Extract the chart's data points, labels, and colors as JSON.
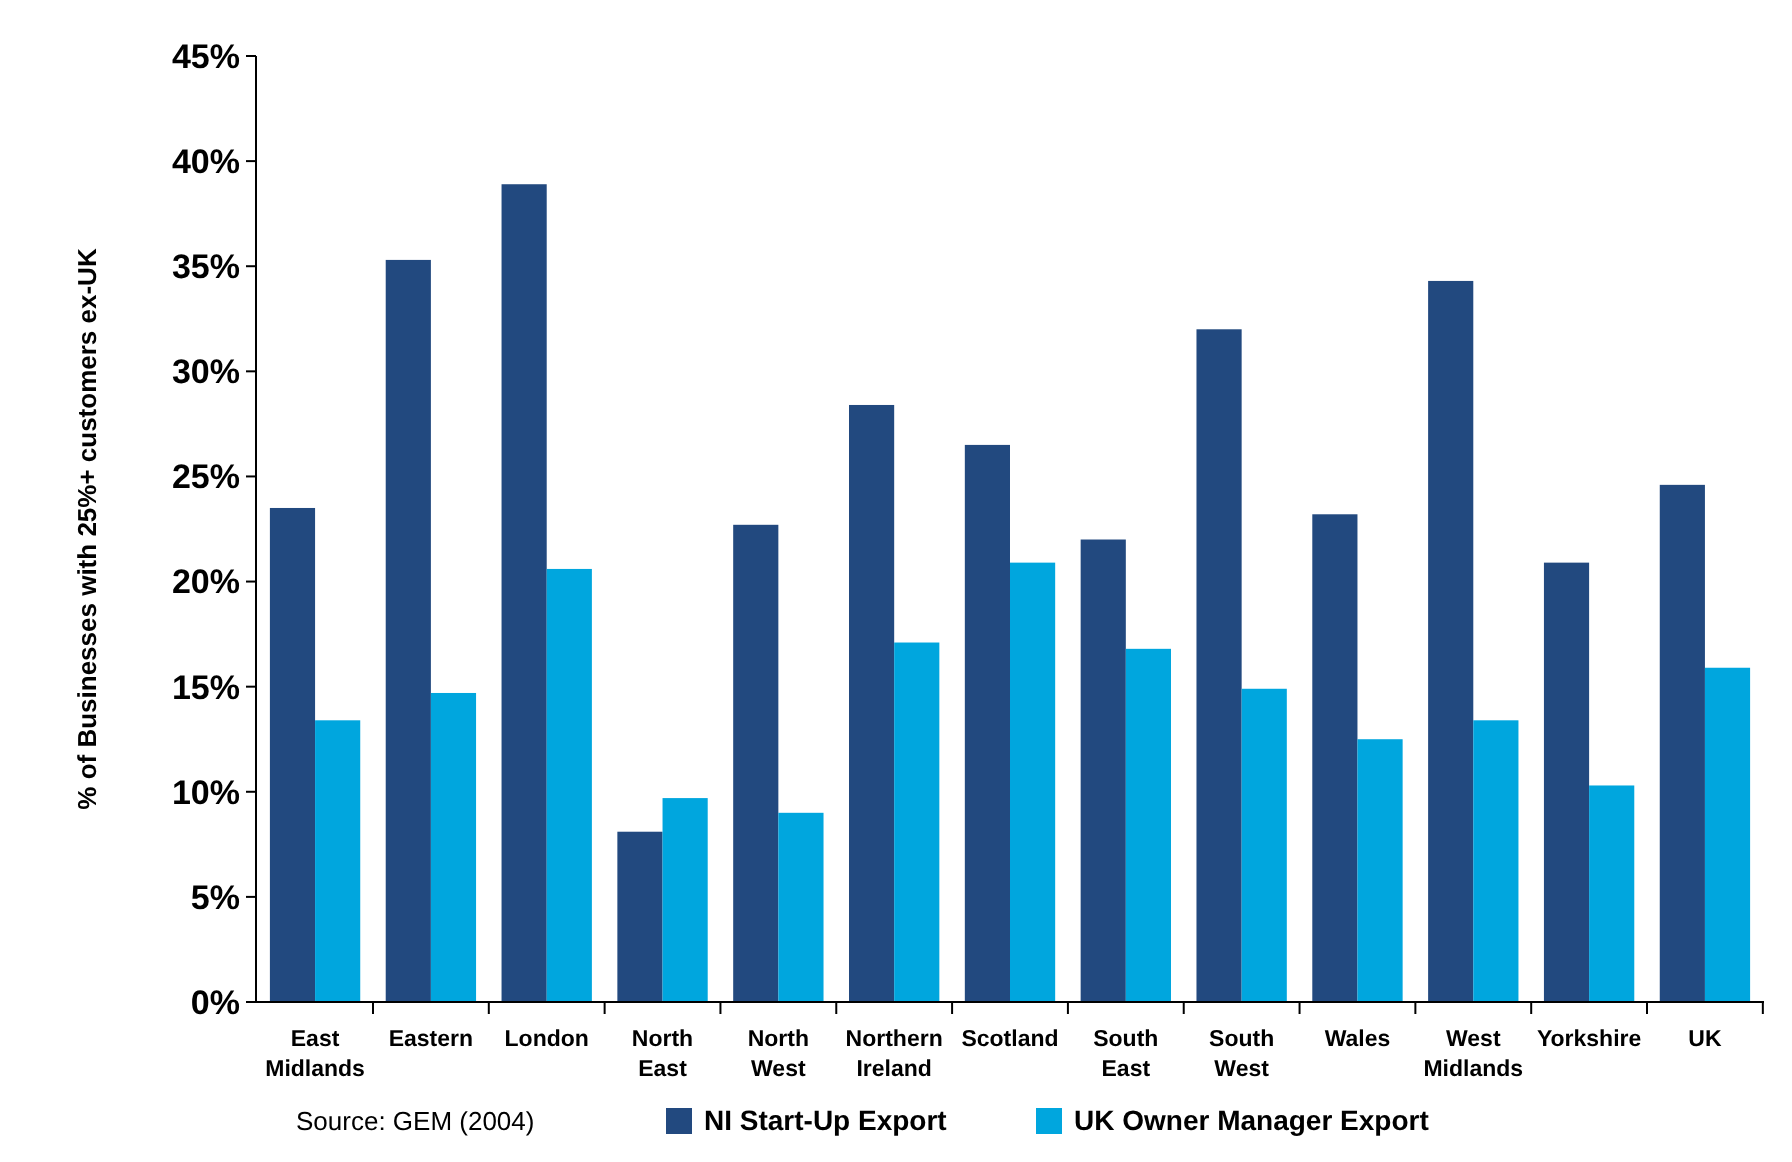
{
  "chart_data": {
    "type": "bar",
    "ylabel": "% of Businesses with 25%+ customers ex-UK",
    "categories": [
      "East Midlands",
      "Eastern",
      "London",
      "North East",
      "North West",
      "Northern Ireland",
      "Scotland",
      "South East",
      "South West",
      "Wales",
      "West Midlands",
      "Yorkshire",
      "UK"
    ],
    "series": [
      {
        "name": "NI Start-Up Export",
        "color": "#22497f",
        "values": [
          23.5,
          35.3,
          38.9,
          8.1,
          22.7,
          28.4,
          26.5,
          22.0,
          32.0,
          23.2,
          34.3,
          20.9,
          24.6
        ]
      },
      {
        "name": "UK Owner Manager Export",
        "color": "#00a6de",
        "values": [
          13.4,
          14.7,
          20.6,
          9.7,
          9.0,
          17.1,
          20.9,
          16.8,
          14.9,
          12.5,
          13.4,
          10.3,
          15.9
        ]
      }
    ],
    "ylim": [
      0,
      45
    ],
    "yticks": [
      {
        "value": 0,
        "label": "0%"
      },
      {
        "value": 5,
        "label": "5%"
      },
      {
        "value": 10,
        "label": "10%"
      },
      {
        "value": 15,
        "label": "15%"
      },
      {
        "value": 20,
        "label": "20%"
      },
      {
        "value": 25,
        "label": "25%"
      },
      {
        "value": 30,
        "label": "30%"
      },
      {
        "value": 35,
        "label": "35%"
      },
      {
        "value": 40,
        "label": "40%"
      },
      {
        "value": 45,
        "label": "45%"
      }
    ],
    "grid": false,
    "legend": "bottom",
    "annotations": [
      "Source:  GEM (2004)"
    ]
  }
}
